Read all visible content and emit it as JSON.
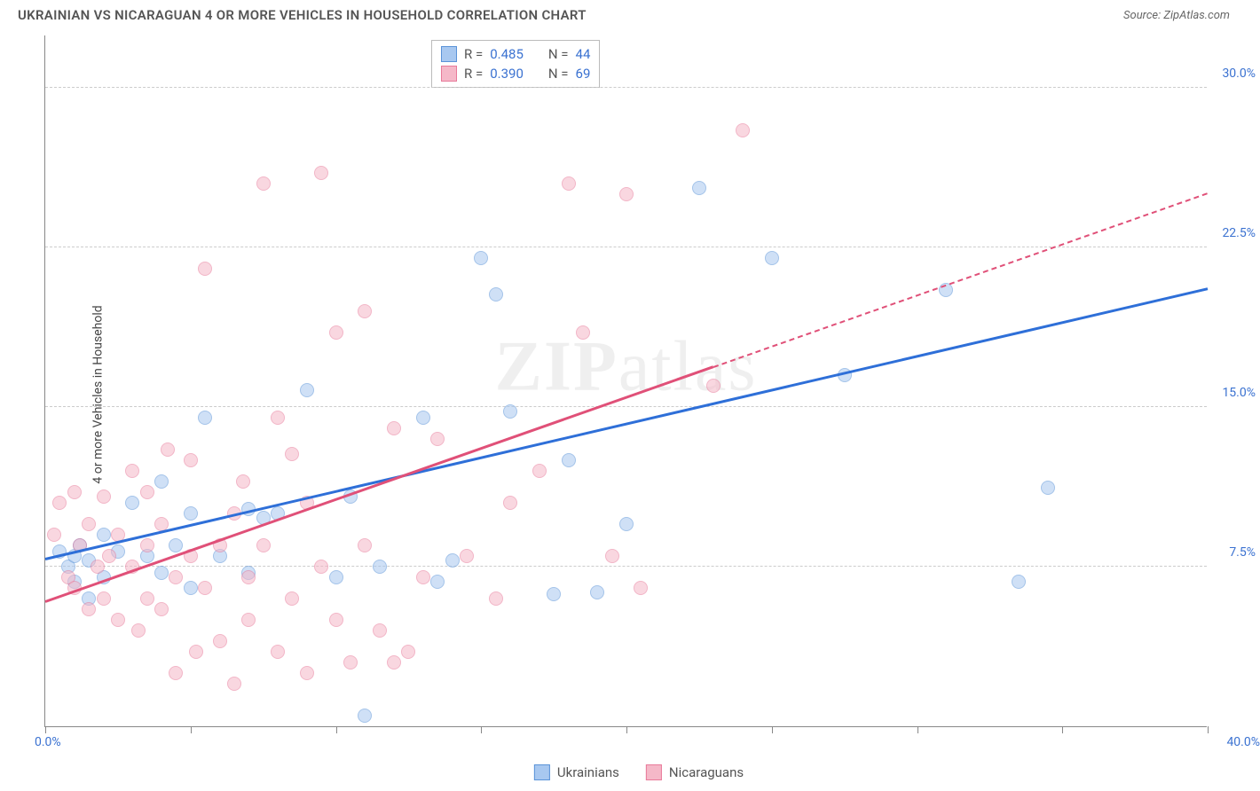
{
  "header": {
    "title": "UKRAINIAN VS NICARAGUAN 4 OR MORE VEHICLES IN HOUSEHOLD CORRELATION CHART",
    "source": "Source: ZipAtlas.com"
  },
  "chart": {
    "type": "scatter",
    "watermark": "ZIPatlas",
    "yaxis_title": "4 or more Vehicles in Household",
    "background_color": "#ffffff",
    "grid_color": "#cccccc",
    "axis_color": "#888888",
    "tick_label_color": "#3b72d1",
    "xlim": [
      0,
      40
    ],
    "ylim": [
      0,
      32.5
    ],
    "x_ticks": [
      0,
      5,
      10,
      15,
      20,
      25,
      30,
      35,
      40
    ],
    "x_tick_labels": {
      "0": "0.0%",
      "40": "40.0%"
    },
    "y_gridlines": [
      7.5,
      15.0,
      22.5,
      30.0
    ],
    "y_tick_labels": [
      "7.5%",
      "15.0%",
      "22.5%",
      "30.0%"
    ],
    "marker_radius": 8,
    "marker_opacity": 0.55,
    "line_width": 3,
    "series": [
      {
        "name": "Ukrainians",
        "color_fill": "#a8c8f0",
        "color_stroke": "#5a93d8",
        "R": "0.485",
        "N": "44",
        "trend": {
          "color": "#2e6fd8",
          "x1": 0,
          "y1": 7.8,
          "x2": 40,
          "y2": 20.5,
          "solid_until_x": 40
        },
        "points": [
          [
            0.5,
            8.2
          ],
          [
            0.8,
            7.5
          ],
          [
            1.0,
            8.0
          ],
          [
            1.0,
            6.8
          ],
          [
            1.2,
            8.5
          ],
          [
            1.5,
            6.0
          ],
          [
            1.5,
            7.8
          ],
          [
            2.0,
            9.0
          ],
          [
            2.0,
            7.0
          ],
          [
            2.5,
            8.2
          ],
          [
            3.0,
            10.5
          ],
          [
            3.5,
            8.0
          ],
          [
            4.0,
            7.2
          ],
          [
            4.0,
            11.5
          ],
          [
            4.5,
            8.5
          ],
          [
            5.0,
            6.5
          ],
          [
            5.0,
            10.0
          ],
          [
            5.5,
            14.5
          ],
          [
            6.0,
            8.0
          ],
          [
            7.0,
            10.2
          ],
          [
            7.5,
            9.8
          ],
          [
            8.0,
            10.0
          ],
          [
            9.0,
            15.8
          ],
          [
            10.0,
            7.0
          ],
          [
            10.5,
            10.8
          ],
          [
            11.0,
            0.5
          ],
          [
            11.5,
            7.5
          ],
          [
            13.0,
            14.5
          ],
          [
            13.5,
            6.8
          ],
          [
            14.0,
            7.8
          ],
          [
            15.0,
            22.0
          ],
          [
            15.5,
            20.3
          ],
          [
            16.0,
            14.8
          ],
          [
            17.5,
            6.2
          ],
          [
            18.0,
            12.5
          ],
          [
            19.0,
            6.3
          ],
          [
            20.0,
            9.5
          ],
          [
            22.5,
            25.3
          ],
          [
            25.0,
            22.0
          ],
          [
            27.5,
            16.5
          ],
          [
            31.0,
            20.5
          ],
          [
            33.5,
            6.8
          ],
          [
            34.5,
            11.2
          ],
          [
            7.0,
            7.2
          ]
        ]
      },
      {
        "name": "Nicaraguans",
        "color_fill": "#f5b8c8",
        "color_stroke": "#e87a9a",
        "R": "0.390",
        "N": "69",
        "trend": {
          "color": "#e05078",
          "x1": 0,
          "y1": 5.8,
          "x2": 40,
          "y2": 25.0,
          "solid_until_x": 23
        },
        "points": [
          [
            0.3,
            9.0
          ],
          [
            0.5,
            10.5
          ],
          [
            0.8,
            7.0
          ],
          [
            1.0,
            11.0
          ],
          [
            1.0,
            6.5
          ],
          [
            1.2,
            8.5
          ],
          [
            1.5,
            5.5
          ],
          [
            1.5,
            9.5
          ],
          [
            1.8,
            7.5
          ],
          [
            2.0,
            10.8
          ],
          [
            2.0,
            6.0
          ],
          [
            2.2,
            8.0
          ],
          [
            2.5,
            9.0
          ],
          [
            2.5,
            5.0
          ],
          [
            3.0,
            7.5
          ],
          [
            3.0,
            12.0
          ],
          [
            3.2,
            4.5
          ],
          [
            3.5,
            8.5
          ],
          [
            3.5,
            6.0
          ],
          [
            4.0,
            9.5
          ],
          [
            4.0,
            5.5
          ],
          [
            4.5,
            7.0
          ],
          [
            4.5,
            2.5
          ],
          [
            5.0,
            8.0
          ],
          [
            5.0,
            12.5
          ],
          [
            5.2,
            3.5
          ],
          [
            5.5,
            6.5
          ],
          [
            5.5,
            21.5
          ],
          [
            6.0,
            8.5
          ],
          [
            6.0,
            4.0
          ],
          [
            6.5,
            10.0
          ],
          [
            6.5,
            2.0
          ],
          [
            7.0,
            7.0
          ],
          [
            7.0,
            5.0
          ],
          [
            7.5,
            8.5
          ],
          [
            7.5,
            25.5
          ],
          [
            8.0,
            3.5
          ],
          [
            8.0,
            14.5
          ],
          [
            8.5,
            6.0
          ],
          [
            8.5,
            12.8
          ],
          [
            9.0,
            2.5
          ],
          [
            9.0,
            10.5
          ],
          [
            9.5,
            7.5
          ],
          [
            9.5,
            26.0
          ],
          [
            10.0,
            5.0
          ],
          [
            10.0,
            18.5
          ],
          [
            10.5,
            3.0
          ],
          [
            11.0,
            8.5
          ],
          [
            11.0,
            19.5
          ],
          [
            11.5,
            4.5
          ],
          [
            12.0,
            3.0
          ],
          [
            12.0,
            14.0
          ],
          [
            12.5,
            3.5
          ],
          [
            13.0,
            7.0
          ],
          [
            13.5,
            13.5
          ],
          [
            14.5,
            8.0
          ],
          [
            15.5,
            6.0
          ],
          [
            16.0,
            10.5
          ],
          [
            17.0,
            12.0
          ],
          [
            18.0,
            25.5
          ],
          [
            18.5,
            18.5
          ],
          [
            19.5,
            8.0
          ],
          [
            20.0,
            25.0
          ],
          [
            20.5,
            6.5
          ],
          [
            23.0,
            16.0
          ],
          [
            24.0,
            28.0
          ],
          [
            3.5,
            11.0
          ],
          [
            4.2,
            13.0
          ],
          [
            6.8,
            11.5
          ]
        ]
      }
    ]
  }
}
